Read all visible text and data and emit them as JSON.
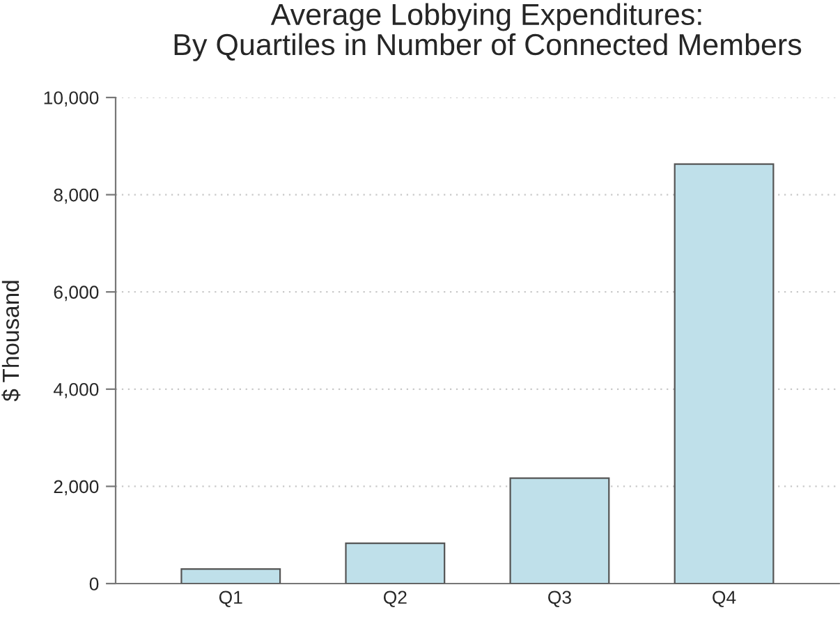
{
  "chart_data": {
    "type": "bar",
    "title": "Average Lobbying Expenditures:\nBy Quartiles in Number of Connected Members",
    "ylabel": "$ Thousand",
    "categories": [
      "Q1",
      "Q2",
      "Q3",
      "Q4"
    ],
    "values": [
      300,
      830,
      2170,
      8630
    ],
    "color": "#bfe0ea",
    "ylim": [
      0,
      10000
    ],
    "yticks": [
      {
        "value": 0,
        "label": "0"
      },
      {
        "value": 2000,
        "label": "2,000"
      },
      {
        "value": 4000,
        "label": "4,000"
      },
      {
        "value": 6000,
        "label": "6,000"
      },
      {
        "value": 8000,
        "label": "8,000"
      },
      {
        "value": 10000,
        "label": "10,000"
      }
    ],
    "grid": "y"
  }
}
